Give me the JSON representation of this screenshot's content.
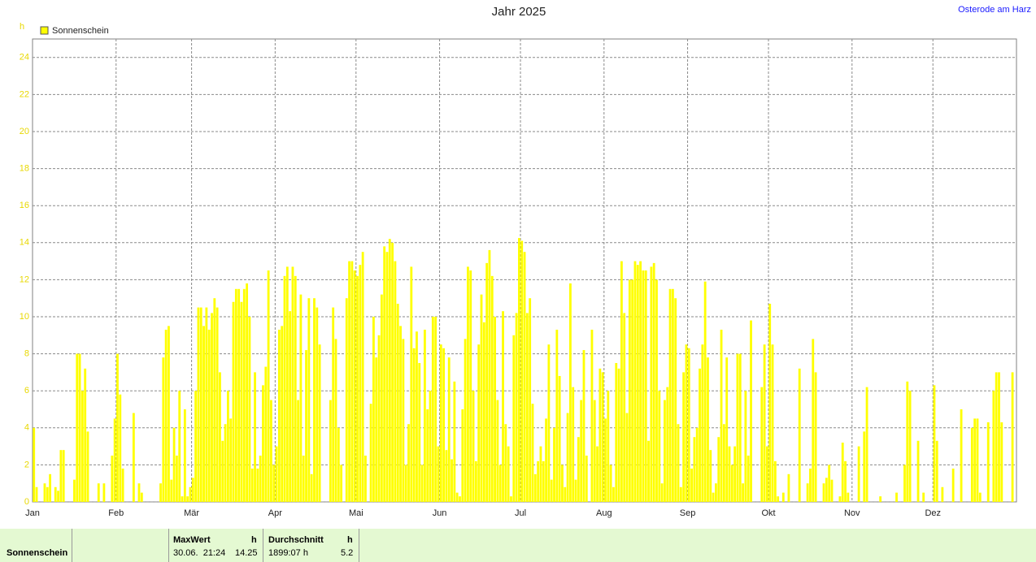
{
  "chart_data": {
    "type": "bar",
    "title": "Jahr 2025",
    "location": "Osterode am Harz",
    "y_unit": "h",
    "series": [
      {
        "name": "Sonnenschein",
        "color": "#ffff00",
        "values": [
          4,
          0.8,
          0,
          0,
          1,
          0.8,
          1.5,
          0,
          0.8,
          0.6,
          2.8,
          2.8,
          0,
          0,
          0,
          1.2,
          8,
          8,
          6,
          7.2,
          3.8,
          0,
          0,
          0,
          1,
          0,
          1,
          0,
          0,
          2.5,
          4.5,
          8,
          5.8,
          1.8,
          0,
          0,
          0,
          4.8,
          0,
          1,
          0.5,
          0,
          0,
          0,
          0,
          0,
          0,
          1,
          7.8,
          9.3,
          9.5,
          1.2,
          4,
          2.5,
          6,
          0.3,
          5,
          0.3,
          0.8,
          1.3,
          6,
          10.5,
          10.5,
          9.5,
          10.5,
          9.3,
          10.2,
          11,
          10.5,
          7,
          3.3,
          4.2,
          6,
          4.5,
          10.8,
          11.5,
          11.5,
          10.8,
          11.5,
          11.8,
          10,
          1.8,
          7,
          1.8,
          2.5,
          6.3,
          7.3,
          12.5,
          5.5,
          2,
          3,
          9.3,
          9.5,
          12.2,
          12.7,
          10.3,
          12.7,
          12.2,
          5.5,
          11.2,
          2.5,
          8.2,
          11,
          1.5,
          11,
          10.5,
          8.5,
          0,
          0,
          0,
          5.5,
          10.5,
          8.8,
          4,
          2,
          0,
          11,
          13,
          13,
          12.5,
          12.2,
          12.8,
          13.5,
          2.5,
          0,
          5.3,
          10,
          7.8,
          9,
          11.2,
          13.8,
          13.5,
          14.2,
          14,
          13,
          10.7,
          9.5,
          8.8,
          2,
          4.2,
          12.7,
          8.3,
          9.2,
          7.5,
          2,
          9.3,
          5,
          6,
          10,
          10,
          3,
          8.5,
          8.3,
          2.8,
          7.8,
          2.3,
          6.5,
          0.5,
          0.3,
          5,
          8.8,
          12.7,
          12.5,
          6,
          2.2,
          8.5,
          11.2,
          9.7,
          12.9,
          13.6,
          12.2,
          10,
          5.5,
          2,
          10.3,
          4.2,
          3,
          0.3,
          9,
          10.2,
          14.25,
          14.1,
          13.5,
          10.2,
          11,
          5.3,
          1.5,
          2.2,
          3,
          2.2,
          4.5,
          8.5,
          1.2,
          4,
          9.3,
          6.8,
          2,
          0.8,
          4.8,
          11.8,
          6.2,
          1.2,
          3.5,
          5.5,
          8.2,
          2.5,
          0,
          9.3,
          5.5,
          3,
          7.2,
          7,
          4.5,
          6,
          2,
          0.8,
          7.5,
          7.2,
          13,
          10.2,
          4.8,
          12,
          12,
          13,
          12.8,
          13,
          12.5,
          12.5,
          3.3,
          12.7,
          12.9,
          12,
          6,
          1,
          5.5,
          6.2,
          11.5,
          11.5,
          11,
          4.2,
          0.8,
          7,
          8.5,
          8.3,
          1.8,
          3.5,
          4,
          7.2,
          8.5,
          11.9,
          7.8,
          2.8,
          0.5,
          1,
          3.5,
          9.3,
          4.2,
          7.8,
          3,
          2,
          3,
          8,
          8,
          1,
          6,
          2.5,
          9.8,
          0,
          0,
          0,
          6.2,
          8.5,
          3,
          10.7,
          8.5,
          2.2,
          0.3,
          0,
          0.5,
          0,
          1.5,
          0,
          0,
          0,
          7.2,
          0,
          0,
          1,
          1.8,
          8.8,
          7,
          0,
          0,
          1,
          1.3,
          2,
          1.2,
          0,
          0,
          0.3,
          3.2,
          2.2,
          0.5,
          0,
          0,
          0,
          3,
          0,
          3.8,
          6.2,
          0,
          0,
          0,
          0,
          0.3,
          0,
          0,
          0,
          0,
          0,
          0.5,
          0,
          0,
          2,
          6.5,
          6,
          0,
          0,
          3.3,
          0,
          0.5,
          0,
          0,
          0,
          6.3,
          3.3,
          0,
          0.8,
          0,
          0,
          0,
          1.8,
          0,
          0,
          5,
          0,
          0,
          0,
          4,
          4.5,
          4.5,
          0.5,
          0,
          0,
          4.3,
          0,
          6,
          7,
          7,
          4.3,
          0,
          0,
          0,
          7,
          0
        ]
      }
    ],
    "categories": [
      "Jan",
      null,
      null,
      null,
      null,
      null,
      null,
      null,
      null,
      null,
      null,
      null,
      null,
      null,
      null,
      null,
      null,
      null,
      null,
      null,
      null,
      null,
      null,
      null,
      null,
      null,
      null,
      null,
      null,
      null,
      null,
      "Feb",
      null,
      null,
      null,
      null,
      null,
      null,
      null,
      null,
      null,
      null,
      null,
      null,
      null,
      null,
      null,
      null,
      null,
      null,
      null,
      null,
      null,
      null,
      null,
      null,
      null,
      null,
      null,
      "Mär",
      null,
      null,
      null,
      null,
      null,
      null,
      null,
      null,
      null,
      null,
      null,
      null,
      null,
      null,
      null,
      null,
      null,
      null,
      null,
      null,
      null,
      null,
      null,
      null,
      null,
      null,
      null,
      null,
      null,
      null,
      "Apr",
      null,
      null,
      null,
      null,
      null,
      null,
      null,
      null,
      null,
      null,
      null,
      null,
      null,
      null,
      null,
      null,
      null,
      null,
      null,
      null,
      null,
      null,
      null,
      null,
      null,
      null,
      null,
      null,
      null,
      "Mai",
      null,
      null,
      null,
      null,
      null,
      null,
      null,
      null,
      null,
      null,
      null,
      null,
      null,
      null,
      null,
      null,
      null,
      null,
      null,
      null,
      null,
      null,
      null,
      null,
      null,
      null,
      null,
      null,
      null,
      null,
      "Jun",
      null,
      null,
      null,
      null,
      null,
      null,
      null,
      null,
      null,
      null,
      null,
      null,
      null,
      null,
      null,
      null,
      null,
      null,
      null,
      null,
      null,
      null,
      null,
      null,
      null,
      null,
      null,
      null,
      null,
      "Jul",
      null,
      null,
      null,
      null,
      null,
      null,
      null,
      null,
      null,
      null,
      null,
      null,
      null,
      null,
      null,
      null,
      null,
      null,
      null,
      null,
      null,
      null,
      null,
      null,
      null,
      null,
      null,
      null,
      null,
      null,
      "Aug",
      null,
      null,
      null,
      null,
      null,
      null,
      null,
      null,
      null,
      null,
      null,
      null,
      null,
      null,
      null,
      null,
      null,
      null,
      null,
      null,
      null,
      null,
      null,
      null,
      null,
      null,
      null,
      null,
      null,
      null,
      "Sep",
      null,
      null,
      null,
      null,
      null,
      null,
      null,
      null,
      null,
      null,
      null,
      null,
      null,
      null,
      null,
      null,
      null,
      null,
      null,
      null,
      null,
      null,
      null,
      null,
      null,
      null,
      null,
      null,
      null,
      "Okt",
      null,
      null,
      null,
      null,
      null,
      null,
      null,
      null,
      null,
      null,
      null,
      null,
      null,
      null,
      null,
      null,
      null,
      null,
      null,
      null,
      null,
      null,
      null,
      null,
      null,
      null,
      null,
      null,
      null,
      null,
      "Nov",
      null,
      null,
      null,
      null,
      null,
      null,
      null,
      null,
      null,
      null,
      null,
      null,
      null,
      null,
      null,
      null,
      null,
      null,
      null,
      null,
      null,
      null,
      null,
      null,
      null,
      null,
      null,
      null,
      null,
      "Dez",
      null,
      null,
      null,
      null,
      null,
      null,
      null,
      null,
      null,
      null,
      null,
      null,
      null,
      null,
      null,
      null,
      null,
      null,
      null,
      null,
      null,
      null,
      null,
      null,
      null,
      null,
      null,
      null,
      null,
      null
    ],
    "ylim": [
      0,
      25
    ],
    "yticks": [
      0,
      2,
      4,
      6,
      8,
      10,
      12,
      14,
      16,
      18,
      20,
      22,
      24
    ],
    "grid": true,
    "legend": "top-left"
  },
  "summary": {
    "label": "Sonnenschein",
    "max_title": "MaxWert",
    "max_unit": "h",
    "max_time": "30.06.  21:24",
    "max_value": "14.25",
    "avg_title": "Durchschnitt",
    "avg_unit": "h",
    "total": "1899:07 h",
    "avg_value": "5.2"
  }
}
